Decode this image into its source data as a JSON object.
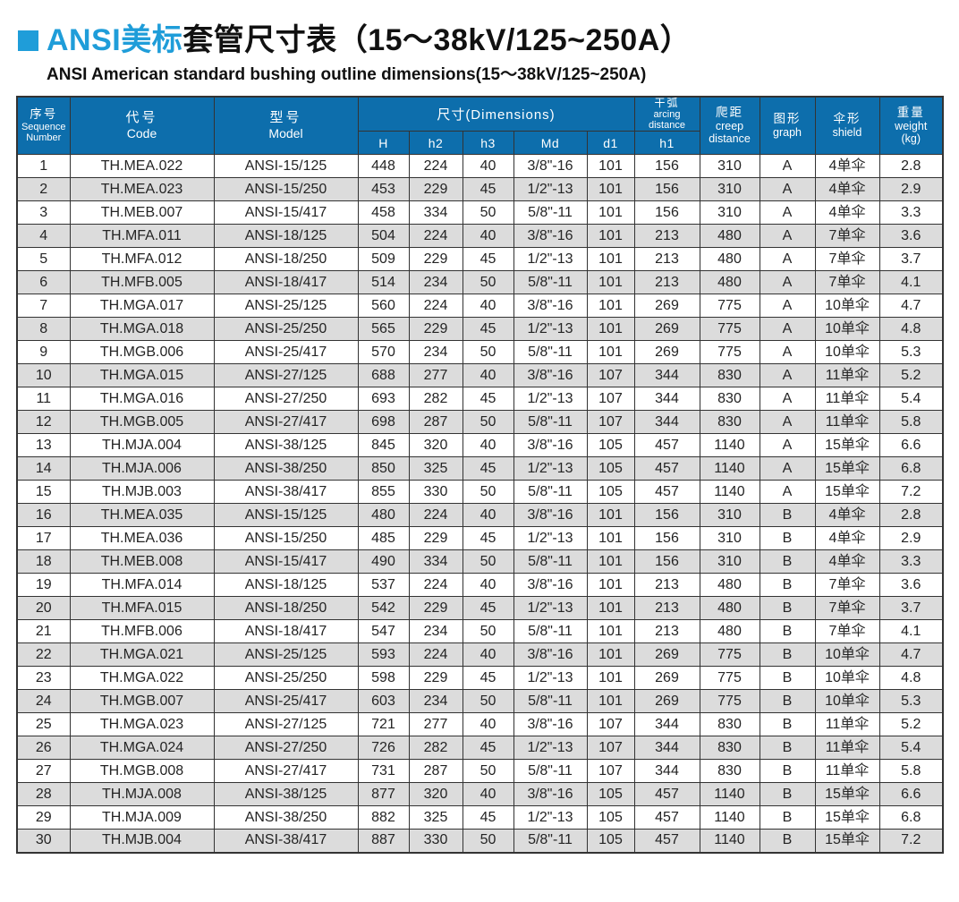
{
  "colors": {
    "header_blue": "#0d6eac",
    "title_blue": "#1f9dd9",
    "stripe_gray": "#dcdcdc",
    "border": "#333333"
  },
  "page": {
    "title_brand": "ANSI美标",
    "title_rest": "套管尺寸表（15～38kV/125~250A）",
    "subtitle": "ANSI American standard bushing outline dimensions(15～38kV/125~250A)"
  },
  "table": {
    "header": {
      "seq": {
        "zh": "序号",
        "en1": "Sequence",
        "en2": "Number"
      },
      "code": {
        "zh": "代号",
        "en": "Code"
      },
      "model": {
        "zh": "型号",
        "en": "Model"
      },
      "dims": {
        "label": "尺寸(Dimensions)",
        "subcols": [
          "H",
          "h2",
          "h3",
          "Md",
          "d1"
        ]
      },
      "arcing": {
        "zh": "干弧",
        "en1": "arcing",
        "en2": "distance",
        "sub": "h1"
      },
      "creep": {
        "zh": "爬距",
        "en1": "creep",
        "en2": "distance"
      },
      "graph": {
        "zh": "图形",
        "en": "graph"
      },
      "shield": {
        "zh": "伞形",
        "en": "shield"
      },
      "weight": {
        "zh": "重量",
        "en": "weight",
        "unit": "(kg)"
      }
    },
    "columns": [
      "seq",
      "code",
      "model",
      "H",
      "h2",
      "h3",
      "Md",
      "d1",
      "h1",
      "creep",
      "graph",
      "shield",
      "weight"
    ],
    "rows": [
      [
        "1",
        "TH.MEA.022",
        "ANSI-15/125",
        "448",
        "224",
        "40",
        "3/8\"-16",
        "101",
        "156",
        "310",
        "A",
        "4单伞",
        "2.8"
      ],
      [
        "2",
        "TH.MEA.023",
        "ANSI-15/250",
        "453",
        "229",
        "45",
        "1/2\"-13",
        "101",
        "156",
        "310",
        "A",
        "4单伞",
        "2.9"
      ],
      [
        "3",
        "TH.MEB.007",
        "ANSI-15/417",
        "458",
        "334",
        "50",
        "5/8\"-11",
        "101",
        "156",
        "310",
        "A",
        "4单伞",
        "3.3"
      ],
      [
        "4",
        "TH.MFA.011",
        "ANSI-18/125",
        "504",
        "224",
        "40",
        "3/8\"-16",
        "101",
        "213",
        "480",
        "A",
        "7单伞",
        "3.6"
      ],
      [
        "5",
        "TH.MFA.012",
        "ANSI-18/250",
        "509",
        "229",
        "45",
        "1/2\"-13",
        "101",
        "213",
        "480",
        "A",
        "7单伞",
        "3.7"
      ],
      [
        "6",
        "TH.MFB.005",
        "ANSI-18/417",
        "514",
        "234",
        "50",
        "5/8\"-11",
        "101",
        "213",
        "480",
        "A",
        "7单伞",
        "4.1"
      ],
      [
        "7",
        "TH.MGA.017",
        "ANSI-25/125",
        "560",
        "224",
        "40",
        "3/8\"-16",
        "101",
        "269",
        "775",
        "A",
        "10单伞",
        "4.7"
      ],
      [
        "8",
        "TH.MGA.018",
        "ANSI-25/250",
        "565",
        "229",
        "45",
        "1/2\"-13",
        "101",
        "269",
        "775",
        "A",
        "10单伞",
        "4.8"
      ],
      [
        "9",
        "TH.MGB.006",
        "ANSI-25/417",
        "570",
        "234",
        "50",
        "5/8\"-11",
        "101",
        "269",
        "775",
        "A",
        "10单伞",
        "5.3"
      ],
      [
        "10",
        "TH.MGA.015",
        "ANSI-27/125",
        "688",
        "277",
        "40",
        "3/8\"-16",
        "107",
        "344",
        "830",
        "A",
        "11单伞",
        "5.2"
      ],
      [
        "11",
        "TH.MGA.016",
        "ANSI-27/250",
        "693",
        "282",
        "45",
        "1/2\"-13",
        "107",
        "344",
        "830",
        "A",
        "11单伞",
        "5.4"
      ],
      [
        "12",
        "TH.MGB.005",
        "ANSI-27/417",
        "698",
        "287",
        "50",
        "5/8\"-11",
        "107",
        "344",
        "830",
        "A",
        "11单伞",
        "5.8"
      ],
      [
        "13",
        "TH.MJA.004",
        "ANSI-38/125",
        "845",
        "320",
        "40",
        "3/8\"-16",
        "105",
        "457",
        "1140",
        "A",
        "15单伞",
        "6.6"
      ],
      [
        "14",
        "TH.MJA.006",
        "ANSI-38/250",
        "850",
        "325",
        "45",
        "1/2\"-13",
        "105",
        "457",
        "1140",
        "A",
        "15单伞",
        "6.8"
      ],
      [
        "15",
        "TH.MJB.003",
        "ANSI-38/417",
        "855",
        "330",
        "50",
        "5/8\"-11",
        "105",
        "457",
        "1140",
        "A",
        "15单伞",
        "7.2"
      ],
      [
        "16",
        "TH.MEA.035",
        "ANSI-15/125",
        "480",
        "224",
        "40",
        "3/8\"-16",
        "101",
        "156",
        "310",
        "B",
        "4单伞",
        "2.8"
      ],
      [
        "17",
        "TH.MEA.036",
        "ANSI-15/250",
        "485",
        "229",
        "45",
        "1/2\"-13",
        "101",
        "156",
        "310",
        "B",
        "4单伞",
        "2.9"
      ],
      [
        "18",
        "TH.MEB.008",
        "ANSI-15/417",
        "490",
        "334",
        "50",
        "5/8\"-11",
        "101",
        "156",
        "310",
        "B",
        "4单伞",
        "3.3"
      ],
      [
        "19",
        "TH.MFA.014",
        "ANSI-18/125",
        "537",
        "224",
        "40",
        "3/8\"-16",
        "101",
        "213",
        "480",
        "B",
        "7单伞",
        "3.6"
      ],
      [
        "20",
        "TH.MFA.015",
        "ANSI-18/250",
        "542",
        "229",
        "45",
        "1/2\"-13",
        "101",
        "213",
        "480",
        "B",
        "7单伞",
        "3.7"
      ],
      [
        "21",
        "TH.MFB.006",
        "ANSI-18/417",
        "547",
        "234",
        "50",
        "5/8\"-11",
        "101",
        "213",
        "480",
        "B",
        "7单伞",
        "4.1"
      ],
      [
        "22",
        "TH.MGA.021",
        "ANSI-25/125",
        "593",
        "224",
        "40",
        "3/8\"-16",
        "101",
        "269",
        "775",
        "B",
        "10单伞",
        "4.7"
      ],
      [
        "23",
        "TH.MGA.022",
        "ANSI-25/250",
        "598",
        "229",
        "45",
        "1/2\"-13",
        "101",
        "269",
        "775",
        "B",
        "10单伞",
        "4.8"
      ],
      [
        "24",
        "TH.MGB.007",
        "ANSI-25/417",
        "603",
        "234",
        "50",
        "5/8\"-11",
        "101",
        "269",
        "775",
        "B",
        "10单伞",
        "5.3"
      ],
      [
        "25",
        "TH.MGA.023",
        "ANSI-27/125",
        "721",
        "277",
        "40",
        "3/8\"-16",
        "107",
        "344",
        "830",
        "B",
        "11单伞",
        "5.2"
      ],
      [
        "26",
        "TH.MGA.024",
        "ANSI-27/250",
        "726",
        "282",
        "45",
        "1/2\"-13",
        "107",
        "344",
        "830",
        "B",
        "11单伞",
        "5.4"
      ],
      [
        "27",
        "TH.MGB.008",
        "ANSI-27/417",
        "731",
        "287",
        "50",
        "5/8\"-11",
        "107",
        "344",
        "830",
        "B",
        "11单伞",
        "5.8"
      ],
      [
        "28",
        "TH.MJA.008",
        "ANSI-38/125",
        "877",
        "320",
        "40",
        "3/8\"-16",
        "105",
        "457",
        "1140",
        "B",
        "15单伞",
        "6.6"
      ],
      [
        "29",
        "TH.MJA.009",
        "ANSI-38/250",
        "882",
        "325",
        "45",
        "1/2\"-13",
        "105",
        "457",
        "1140",
        "B",
        "15单伞",
        "6.8"
      ],
      [
        "30",
        "TH.MJB.004",
        "ANSI-38/417",
        "887",
        "330",
        "50",
        "5/8\"-11",
        "105",
        "457",
        "1140",
        "B",
        "15单伞",
        "7.2"
      ]
    ]
  }
}
